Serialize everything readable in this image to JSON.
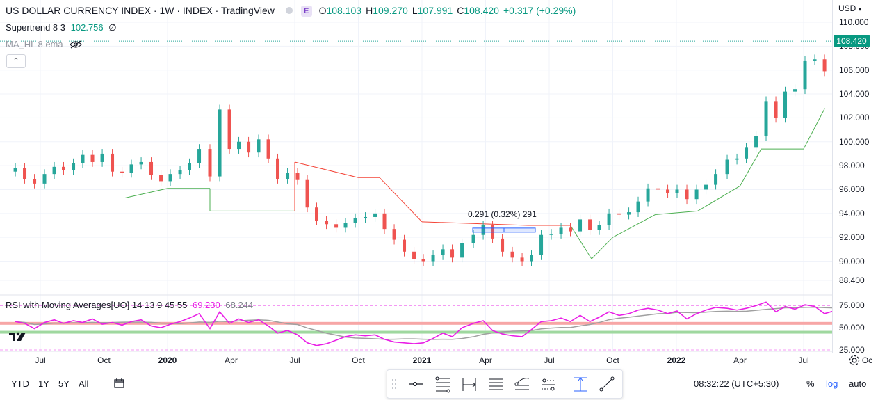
{
  "header": {
    "symbol_title": "US DOLLAR CURRENCY INDEX · 1W · INDEX · TradingView",
    "badge": "E",
    "ohlc": [
      {
        "label": "O",
        "value": "108.103"
      },
      {
        "label": "H",
        "value": "109.270"
      },
      {
        "label": "L",
        "value": "107.991"
      },
      {
        "label": "C",
        "value": "108.420"
      },
      {
        "label": "",
        "value": "+0.317 (+0.29%)"
      }
    ]
  },
  "indicators": {
    "supertrend": {
      "name": "Supertrend 8 3",
      "value": "102.756",
      "suffix": "∅"
    },
    "ma_hl": {
      "name": "MA_HL 8 ema"
    },
    "rsi": {
      "name": "RSI with Moving Averages[UO] 14 13 9 45 55",
      "value1": "69.230",
      "value2": "68.244"
    }
  },
  "price_axis": {
    "currency": "USD",
    "last_price": "108.420",
    "ticks": [
      "110.000",
      "108.000",
      "106.000",
      "104.000",
      "102.000",
      "100.000",
      "98.000",
      "96.000",
      "94.000",
      "92.000",
      "90.000",
      "88.400"
    ]
  },
  "rsi_axis": {
    "ticks": [
      "75.000",
      "50.000",
      "25.000"
    ]
  },
  "time_axis": {
    "ticks": [
      {
        "label": "Jul",
        "bold": false
      },
      {
        "label": "Oct",
        "bold": false
      },
      {
        "label": "2020",
        "bold": true
      },
      {
        "label": "Apr",
        "bold": false
      },
      {
        "label": "Jul",
        "bold": false
      },
      {
        "label": "Oct",
        "bold": false
      },
      {
        "label": "2021",
        "bold": true
      },
      {
        "label": "Apr",
        "bold": false
      },
      {
        "label": "Jul",
        "bold": false
      },
      {
        "label": "Oct",
        "bold": false
      },
      {
        "label": "2022",
        "bold": true
      },
      {
        "label": "Apr",
        "bold": false
      },
      {
        "label": "Jul",
        "bold": false
      },
      {
        "label": "Oc",
        "bold": false
      }
    ]
  },
  "annotation": {
    "measure_label": "0.291 (0.32%) 291"
  },
  "bottom_bar": {
    "ranges": [
      "YTD",
      "1Y",
      "5Y",
      "All"
    ],
    "clock": "08:32:22 (UTC+5:30)",
    "percent": "%",
    "log": "log",
    "auto": "auto"
  },
  "colors": {
    "up": "#26a69a",
    "down": "#ef5350",
    "supertrend_up": "#4caf50",
    "supertrend_down": "#f44336",
    "rsi": "#e91ee6",
    "rsi_ma": "#a0a0a0",
    "accent": "#2962ff"
  },
  "chart_data": {
    "type": "candlestick",
    "interval": "1W",
    "x_range": [
      "2019-05",
      "2022-10"
    ],
    "ylim": [
      88.4,
      110
    ],
    "close_series": {
      "name": "",
      "x": [
        "2019-05-26",
        "2019-06-09",
        "2019-06-23",
        "2019-07-07",
        "2019-07-21",
        "2019-08-04",
        "2019-08-18",
        "2019-09-01",
        "2019-09-15",
        "2019-09-29",
        "2019-10-13",
        "2019-10-27",
        "2019-11-10",
        "2019-11-24",
        "2019-12-08",
        "2019-12-22",
        "2020-01-05",
        "2020-01-19",
        "2020-02-02",
        "2020-02-16",
        "2020-03-01",
        "2020-03-15",
        "2020-03-29",
        "2020-04-12",
        "2020-04-26",
        "2020-05-10",
        "2020-05-24",
        "2020-06-07",
        "2020-06-21",
        "2020-07-05",
        "2020-07-19",
        "2020-08-02",
        "2020-08-16",
        "2020-08-30",
        "2020-09-13",
        "2020-09-27",
        "2020-10-11",
        "2020-10-25",
        "2020-11-08",
        "2020-11-22",
        "2020-12-06",
        "2020-12-20",
        "2021-01-03",
        "2021-01-17",
        "2021-01-31",
        "2021-02-14",
        "2021-02-28",
        "2021-03-14",
        "2021-03-28",
        "2021-04-11",
        "2021-04-25",
        "2021-05-09",
        "2021-05-23",
        "2021-06-06",
        "2021-06-20",
        "2021-07-04",
        "2021-07-18",
        "2021-08-01",
        "2021-08-15",
        "2021-08-29",
        "2021-09-12",
        "2021-09-26",
        "2021-10-10",
        "2021-10-24",
        "2021-11-07",
        "2021-11-21",
        "2021-12-05",
        "2021-12-19",
        "2022-01-02",
        "2022-01-16",
        "2022-01-30",
        "2022-02-13",
        "2022-02-27",
        "2022-03-13",
        "2022-03-27",
        "2022-04-10",
        "2022-04-24",
        "2022-05-08",
        "2022-05-22",
        "2022-06-05",
        "2022-06-19",
        "2022-07-03",
        "2022-07-17",
        "2022-07-31",
        "2022-08-14",
        "2022-08-28"
      ],
      "values": [
        97.8,
        96.9,
        96.5,
        97.3,
        97.9,
        97.6,
        98.2,
        98.9,
        98.3,
        99.0,
        97.5,
        97.4,
        98.1,
        98.3,
        97.2,
        96.7,
        97.3,
        97.6,
        98.2,
        99.4,
        97.1,
        102.7,
        99.4,
        100.0,
        99.1,
        100.2,
        98.6,
        96.9,
        97.4,
        96.8,
        94.5,
        93.4,
        93.1,
        92.8,
        93.2,
        93.6,
        93.7,
        94.0,
        92.7,
        91.8,
        90.8,
        90.2,
        90.0,
        90.5,
        91.0,
        90.3,
        91.5,
        92.2,
        93.0,
        91.9,
        90.8,
        90.3,
        90.0,
        90.5,
        92.2,
        92.3,
        92.8,
        92.5,
        93.5,
        92.6,
        93.0,
        94.0,
        93.9,
        94.1,
        95.0,
        96.1,
        96.0,
        95.7,
        96.0,
        95.2,
        96.0,
        96.4,
        97.3,
        98.5,
        98.6,
        99.5,
        100.5,
        103.4,
        102.0,
        104.2,
        104.4,
        106.8,
        106.9,
        105.9,
        106.3,
        108.4
      ]
    },
    "supertrend": {
      "name": "Supertrend 8 3",
      "x": [
        "2019-05",
        "2019-11",
        "2020-01",
        "2020-03",
        "2020-03",
        "2020-07",
        "2020-07",
        "2020-10",
        "2020-11",
        "2021-01",
        "2021-06",
        "2021-08",
        "2021-09",
        "2021-10",
        "2021-12",
        "2022-02",
        "2022-04",
        "2022-05",
        "2022-07",
        "2022-08"
      ],
      "values": [
        95.3,
        95.3,
        96.1,
        96.1,
        94.2,
        94.2,
        98.3,
        97.0,
        97.0,
        93.3,
        93.0,
        93.0,
        90.2,
        92.0,
        93.9,
        94.2,
        96.3,
        99.4,
        99.4,
        102.8
      ]
    },
    "rsi": {
      "name": "RSI",
      "ylim": [
        25,
        80
      ],
      "bands": [
        45,
        55
      ],
      "ticks": [
        75,
        50,
        25
      ],
      "values": [
        57,
        55,
        49,
        56,
        59,
        55,
        58,
        56,
        60,
        54,
        56,
        53,
        57,
        59,
        52,
        50,
        54,
        57,
        61,
        66,
        49,
        68,
        55,
        60,
        56,
        59,
        52,
        44,
        47,
        42,
        33,
        30,
        32,
        36,
        40,
        42,
        41,
        42,
        37,
        34,
        33,
        32,
        33,
        38,
        44,
        40,
        50,
        55,
        58,
        47,
        43,
        41,
        40,
        48,
        57,
        58,
        61,
        57,
        64,
        57,
        62,
        68,
        64,
        66,
        70,
        72,
        70,
        66,
        69,
        60,
        66,
        70,
        73,
        72,
        70,
        72,
        75,
        79,
        68,
        74,
        71,
        76,
        74,
        66,
        69,
        69.2
      ]
    }
  }
}
